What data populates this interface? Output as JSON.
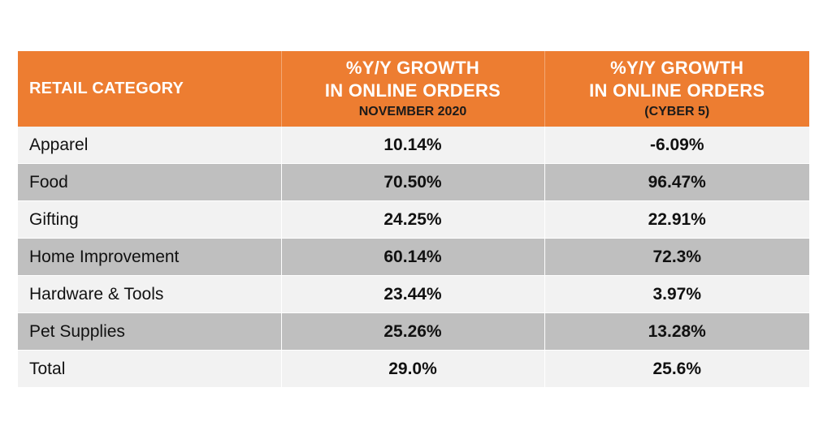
{
  "table": {
    "header": {
      "category": "RETAIL CATEGORY",
      "col1_line1": "%Y/Y GROWTH",
      "col1_line2": "IN ONLINE ORDERS",
      "col1_sub": "NOVEMBER 2020",
      "col2_line1": "%Y/Y GROWTH",
      "col2_line2": "IN ONLINE ORDERS",
      "col2_sub": "(CYBER 5)"
    },
    "rows": [
      {
        "category": "Apparel",
        "november_2020": "10.14%",
        "cyber_5": "-6.09%"
      },
      {
        "category": "Food",
        "november_2020": "70.50%",
        "cyber_5": "96.47%"
      },
      {
        "category": "Gifting",
        "november_2020": "24.25%",
        "cyber_5": "22.91%"
      },
      {
        "category": "Home Improvement",
        "november_2020": "60.14%",
        "cyber_5": "72.3%"
      },
      {
        "category": "Hardware & Tools",
        "november_2020": "23.44%",
        "cyber_5": "3.97%"
      },
      {
        "category": "Pet Supplies",
        "november_2020": "25.26%",
        "cyber_5": "13.28%"
      },
      {
        "category": "Total",
        "november_2020": "29.0%",
        "cyber_5": "25.6%"
      }
    ]
  },
  "colors": {
    "header_bg": "#ed7d31",
    "row_light": "#f2f2f2",
    "row_dark": "#bfbfbf"
  },
  "chart_data": {
    "type": "table",
    "columns": [
      "RETAIL CATEGORY",
      "%Y/Y GROWTH IN ONLINE ORDERS NOVEMBER 2020",
      "%Y/Y GROWTH IN ONLINE ORDERS (CYBER 5)"
    ],
    "categories": [
      "Apparel",
      "Food",
      "Gifting",
      "Home Improvement",
      "Hardware & Tools",
      "Pet Supplies",
      "Total"
    ],
    "series": [
      {
        "name": "NOVEMBER 2020",
        "values": [
          10.14,
          70.5,
          24.25,
          60.14,
          23.44,
          25.26,
          29.0
        ]
      },
      {
        "name": "(CYBER 5)",
        "values": [
          -6.09,
          96.47,
          22.91,
          72.3,
          3.97,
          13.28,
          25.6
        ]
      }
    ]
  }
}
